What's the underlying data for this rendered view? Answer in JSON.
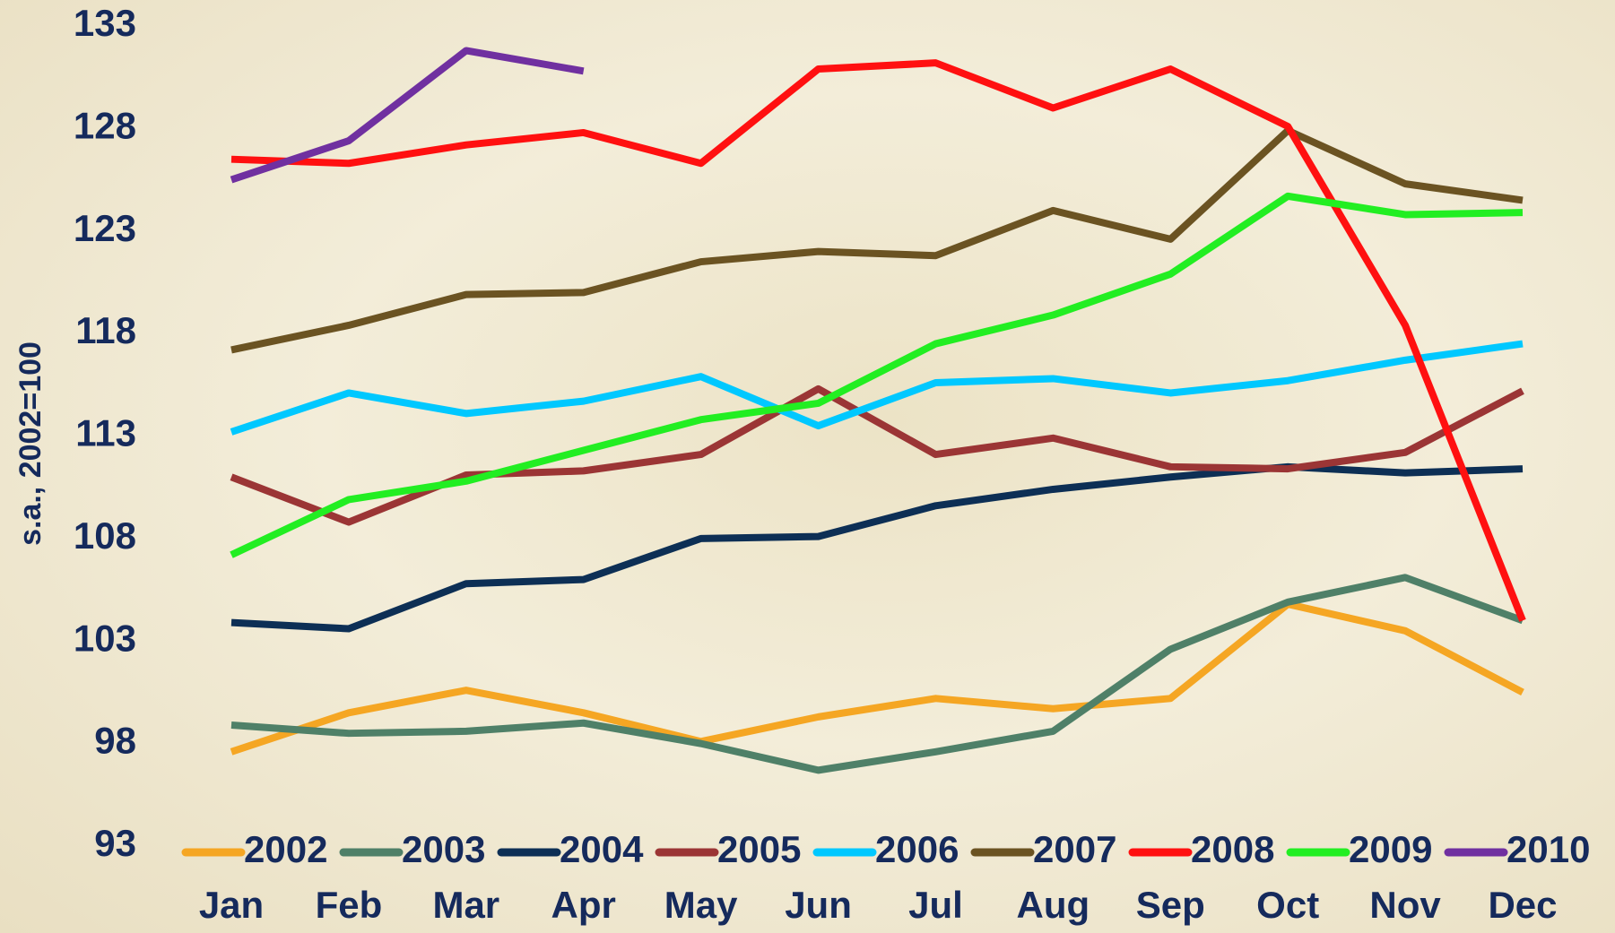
{
  "chart_data": {
    "type": "line",
    "y_label": "s.a., 2002=100",
    "categories": [
      "Jan",
      "Feb",
      "Mar",
      "Apr",
      "May",
      "Jun",
      "Jul",
      "Aug",
      "Sep",
      "Oct",
      "Nov",
      "Dec"
    ],
    "ylim": [
      93,
      133
    ],
    "yticks": [
      93,
      98,
      103,
      108,
      113,
      118,
      123,
      128,
      133
    ],
    "series": [
      {
        "name": "2002",
        "color": "#f5a623",
        "values": [
          97.6,
          99.5,
          100.6,
          99.5,
          98.1,
          99.3,
          100.2,
          99.7,
          100.2,
          104.8,
          103.5,
          100.5
        ]
      },
      {
        "name": "2003",
        "color": "#4f8068",
        "values": [
          98.9,
          98.5,
          98.6,
          99.0,
          98.0,
          96.7,
          97.6,
          98.6,
          102.6,
          104.9,
          106.1,
          104.0
        ]
      },
      {
        "name": "2004",
        "color": "#0d2f55",
        "values": [
          103.9,
          103.6,
          105.8,
          106.0,
          108.0,
          108.1,
          109.6,
          110.4,
          111.0,
          111.5,
          111.2,
          111.4
        ]
      },
      {
        "name": "2005",
        "color": "#9b3535",
        "values": [
          111.0,
          108.8,
          111.1,
          111.3,
          112.1,
          115.3,
          112.1,
          112.9,
          111.5,
          111.4,
          112.2,
          115.2
        ]
      },
      {
        "name": "2006",
        "color": "#00c8ff",
        "values": [
          113.2,
          115.1,
          114.1,
          114.7,
          115.9,
          113.5,
          115.6,
          115.8,
          115.1,
          115.7,
          116.7,
          117.5
        ]
      },
      {
        "name": "2007",
        "color": "#6b5322",
        "values": [
          117.2,
          118.4,
          119.9,
          120.0,
          121.5,
          122.0,
          121.8,
          124.0,
          122.6,
          127.9,
          125.3,
          124.5
        ]
      },
      {
        "name": "2008",
        "color": "#ff1010",
        "values": [
          126.5,
          126.3,
          127.2,
          127.8,
          126.3,
          130.9,
          131.2,
          129.0,
          130.9,
          128.1,
          118.4,
          104.0
        ]
      },
      {
        "name": "2009",
        "color": "#22ee22",
        "values": [
          107.2,
          109.9,
          110.8,
          112.3,
          113.8,
          114.6,
          117.5,
          118.9,
          120.9,
          124.7,
          123.8,
          123.9
        ]
      },
      {
        "name": "2010",
        "color": "#7030a0",
        "values": [
          125.5,
          127.4,
          131.8,
          130.8,
          null,
          null,
          null,
          null,
          null,
          null,
          null,
          null
        ]
      }
    ]
  }
}
